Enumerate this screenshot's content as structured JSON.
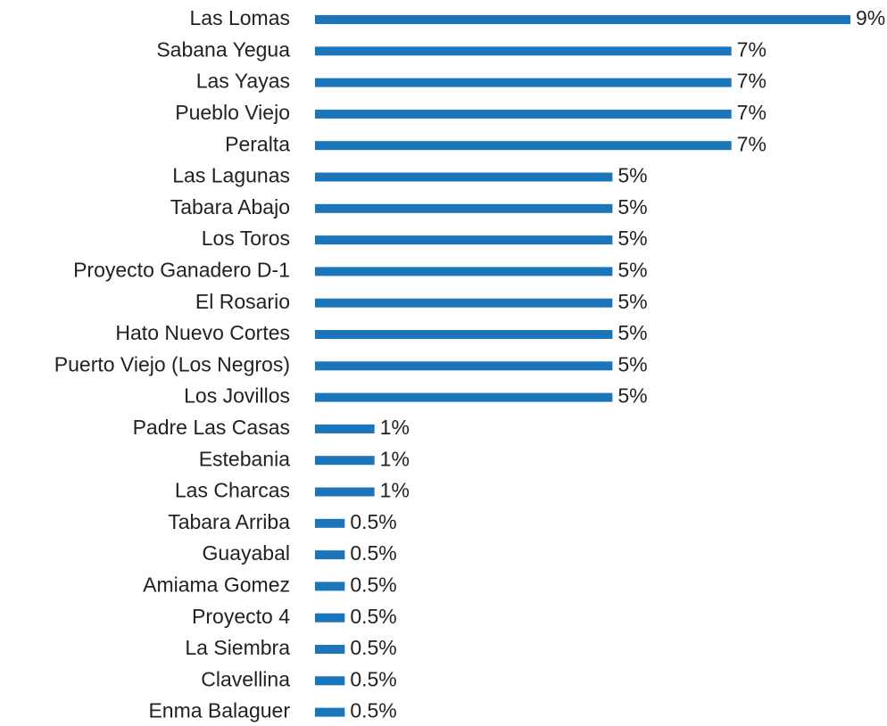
{
  "chart_data": {
    "type": "barh",
    "color": "#1b75bb",
    "categories": [
      "Las Lomas",
      "Sabana Yegua",
      "Las Yayas",
      "Pueblo Viejo",
      "Peralta",
      "Las Lagunas",
      "Tabara Abajo",
      "Los Toros",
      "Proyecto Ganadero D-1",
      "El Rosario",
      "Hato Nuevo Cortes",
      "Puerto Viejo (Los Negros)",
      "Los Jovillos",
      "Padre Las Casas",
      "Estebania",
      "Las Charcas",
      "Tabara Arriba",
      "Guayabal",
      "Amiama Gomez",
      "Proyecto 4",
      "La Siembra",
      "Clavellina",
      "Enma Balaguer"
    ],
    "values": [
      9,
      7,
      7,
      7,
      7,
      5,
      5,
      5,
      5,
      5,
      5,
      5,
      5,
      1,
      1,
      1,
      0.5,
      0.5,
      0.5,
      0.5,
      0.5,
      0.5,
      0.5
    ],
    "value_labels": [
      "9%",
      "7%",
      "7%",
      "7%",
      "7%",
      "5%",
      "5%",
      "5%",
      "5%",
      "5%",
      "5%",
      "5%",
      "5%",
      "1%",
      "1%",
      "1%",
      "0.5%",
      "0.5%",
      "0.5%",
      "0.5%",
      "0.5%",
      "0.5%",
      "0.5%"
    ]
  }
}
